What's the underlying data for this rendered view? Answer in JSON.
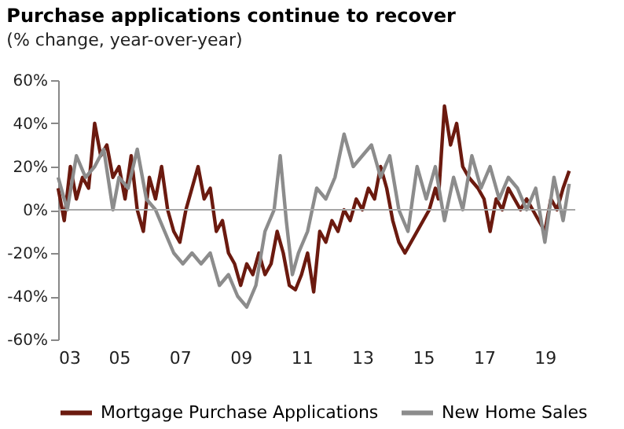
{
  "chart_data": {
    "type": "line",
    "title": "Purchase applications continue to recover",
    "subtitle": "(% change, year-over-year)",
    "xlim": [
      2003,
      2020
    ],
    "xticks": [
      {
        "value": 2003,
        "label": "03"
      },
      {
        "value": 2005,
        "label": "05"
      },
      {
        "value": 2007,
        "label": "07"
      },
      {
        "value": 2009,
        "label": "09"
      },
      {
        "value": 2011,
        "label": "11"
      },
      {
        "value": 2013,
        "label": "13"
      },
      {
        "value": 2015,
        "label": "15"
      },
      {
        "value": 2017,
        "label": "17"
      },
      {
        "value": 2019,
        "label": "19"
      }
    ],
    "ylim": [
      -60,
      60
    ],
    "yticks": [
      {
        "value": -60,
        "label": "-60%"
      },
      {
        "value": -40,
        "label": "-40%"
      },
      {
        "value": -20,
        "label": "-20%"
      },
      {
        "value": 0,
        "label": "0%"
      },
      {
        "value": 20,
        "label": "20%"
      },
      {
        "value": 40,
        "label": "40%"
      },
      {
        "value": 60,
        "label": "60%"
      }
    ],
    "grid": false,
    "legend": "bottom",
    "line_style": "solid",
    "marker": "none",
    "ref_lines": [
      {
        "axis": "y",
        "value": 0,
        "color": "#a6a6a6"
      }
    ],
    "series": [
      {
        "name": "Mortgage Purchase Applications",
        "color": "#6b1a0f",
        "x": [
          2003.0,
          2003.2,
          2003.4,
          2003.6,
          2003.8,
          2004.0,
          2004.2,
          2004.4,
          2004.6,
          2004.8,
          2005.0,
          2005.2,
          2005.4,
          2005.6,
          2005.8,
          2006.0,
          2006.2,
          2006.4,
          2006.6,
          2006.8,
          2007.0,
          2007.2,
          2007.4,
          2007.6,
          2007.8,
          2008.0,
          2008.2,
          2008.4,
          2008.6,
          2008.8,
          2009.0,
          2009.2,
          2009.4,
          2009.6,
          2009.8,
          2010.0,
          2010.2,
          2010.4,
          2010.6,
          2010.8,
          2011.0,
          2011.2,
          2011.4,
          2011.6,
          2011.8,
          2012.0,
          2012.2,
          2012.4,
          2012.6,
          2012.8,
          2013.0,
          2013.2,
          2013.4,
          2013.6,
          2013.8,
          2014.0,
          2014.2,
          2014.4,
          2014.6,
          2014.8,
          2015.0,
          2015.2,
          2015.4,
          2015.5,
          2015.7,
          2015.9,
          2016.1,
          2016.3,
          2016.5,
          2016.8,
          2017.0,
          2017.2,
          2017.4,
          2017.6,
          2017.8,
          2018.0,
          2018.2,
          2018.4,
          2018.6,
          2018.8,
          2019.0,
          2019.2,
          2019.4,
          2019.6,
          2019.8
        ],
        "values": [
          10,
          -5,
          20,
          5,
          15,
          10,
          40,
          25,
          30,
          15,
          20,
          5,
          25,
          0,
          -10,
          15,
          5,
          20,
          0,
          -10,
          -15,
          0,
          10,
          20,
          5,
          10,
          -10,
          -5,
          -20,
          -25,
          -35,
          -25,
          -30,
          -20,
          -30,
          -25,
          -10,
          -20,
          -35,
          -37,
          -30,
          -20,
          -38,
          -10,
          -15,
          -5,
          -10,
          0,
          -5,
          5,
          0,
          10,
          5,
          20,
          10,
          -5,
          -15,
          -20,
          -15,
          -10,
          -5,
          0,
          10,
          5,
          48,
          30,
          40,
          20,
          15,
          10,
          5,
          -10,
          5,
          0,
          10,
          5,
          0,
          5,
          0,
          -5,
          -10,
          5,
          0,
          10,
          18
        ]
      },
      {
        "name": "New Home Sales",
        "color": "#8c8c8c",
        "x": [
          2003.0,
          2003.3,
          2003.6,
          2003.9,
          2004.2,
          2004.5,
          2004.8,
          2005.0,
          2005.3,
          2005.6,
          2005.9,
          2006.2,
          2006.5,
          2006.8,
          2007.1,
          2007.4,
          2007.7,
          2008.0,
          2008.3,
          2008.6,
          2008.9,
          2009.2,
          2009.5,
          2009.8,
          2010.1,
          2010.3,
          2010.5,
          2010.7,
          2010.9,
          2011.2,
          2011.5,
          2011.8,
          2012.1,
          2012.4,
          2012.7,
          2013.0,
          2013.3,
          2013.6,
          2013.9,
          2014.2,
          2014.5,
          2014.8,
          2015.1,
          2015.4,
          2015.7,
          2016.0,
          2016.3,
          2016.6,
          2016.9,
          2017.2,
          2017.5,
          2017.8,
          2018.1,
          2018.4,
          2018.7,
          2019.0,
          2019.3,
          2019.6,
          2019.8
        ],
        "values": [
          15,
          0,
          25,
          15,
          20,
          28,
          0,
          15,
          10,
          28,
          5,
          0,
          -10,
          -20,
          -25,
          -20,
          -25,
          -20,
          -35,
          -30,
          -40,
          -45,
          -35,
          -10,
          0,
          25,
          -5,
          -30,
          -20,
          -10,
          10,
          5,
          15,
          35,
          20,
          25,
          30,
          15,
          25,
          0,
          -10,
          20,
          5,
          20,
          -5,
          15,
          0,
          25,
          10,
          20,
          5,
          15,
          10,
          0,
          10,
          -15,
          15,
          -5,
          12
        ]
      }
    ]
  }
}
